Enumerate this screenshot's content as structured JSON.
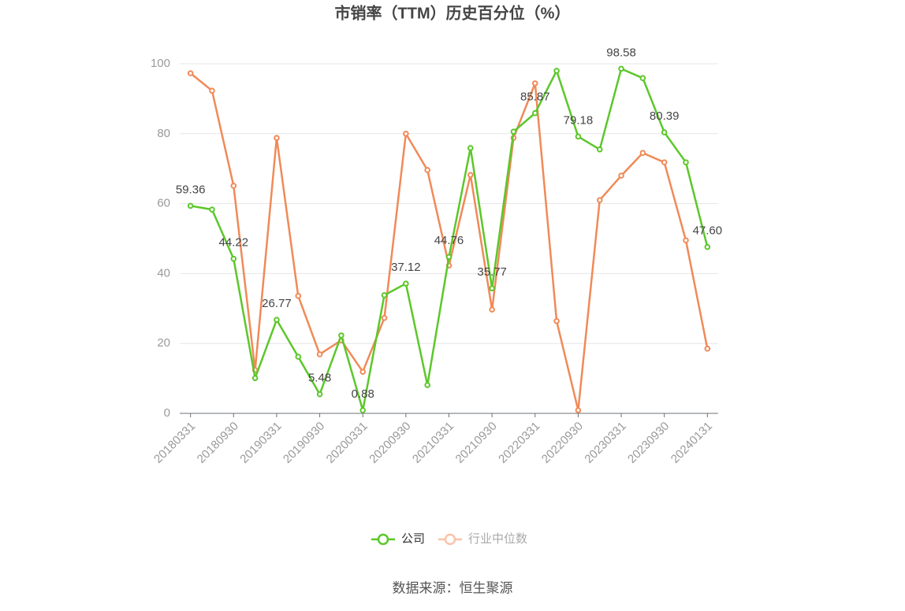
{
  "chart_data": {
    "type": "line",
    "title": "市销率（TTM）历史百分位（%）",
    "source": "数据来源：恒生聚源",
    "categories": [
      "20180331",
      null,
      "20180930",
      null,
      "20190331",
      null,
      "20190930",
      null,
      "20200331",
      null,
      "20200930",
      null,
      "20210331",
      null,
      "20210930",
      null,
      "20220331",
      null,
      "20220930",
      null,
      "20230331",
      null,
      "20230930",
      null,
      "20240131"
    ],
    "series": [
      {
        "name": "公司",
        "color": "#5cc72a",
        "values": [
          59.36,
          58.3,
          44.22,
          10.1,
          26.77,
          16.2,
          5.48,
          22.3,
          0.88,
          33.8,
          37.12,
          8.1,
          44.76,
          75.9,
          35.77,
          80.6,
          85.87,
          98.0,
          79.18,
          75.5,
          98.58,
          95.9,
          80.39,
          71.8,
          47.6
        ],
        "value_labels": [
          "59.36",
          null,
          "44.22",
          null,
          "26.77",
          null,
          "5.48",
          null,
          "0.88",
          null,
          "37.12",
          null,
          "44.76",
          null,
          "35.77",
          null,
          "85.87",
          null,
          "79.18",
          null,
          "98.58",
          null,
          "80.39",
          null,
          "47.60"
        ]
      },
      {
        "name": "行业中位数",
        "color": "#f08a58",
        "values": [
          97.3,
          92.3,
          65.1,
          12.4,
          78.8,
          33.6,
          16.9,
          20.9,
          11.9,
          27.3,
          80.0,
          69.6,
          42.3,
          68.2,
          29.7,
          78.8,
          94.4,
          26.4,
          0.9,
          61.0,
          68.0,
          74.5,
          71.8,
          49.5,
          18.5
        ]
      }
    ],
    "ylim": [
      0,
      100
    ],
    "yticks": [
      0,
      20,
      40,
      60,
      80,
      100
    ],
    "grid": true
  }
}
